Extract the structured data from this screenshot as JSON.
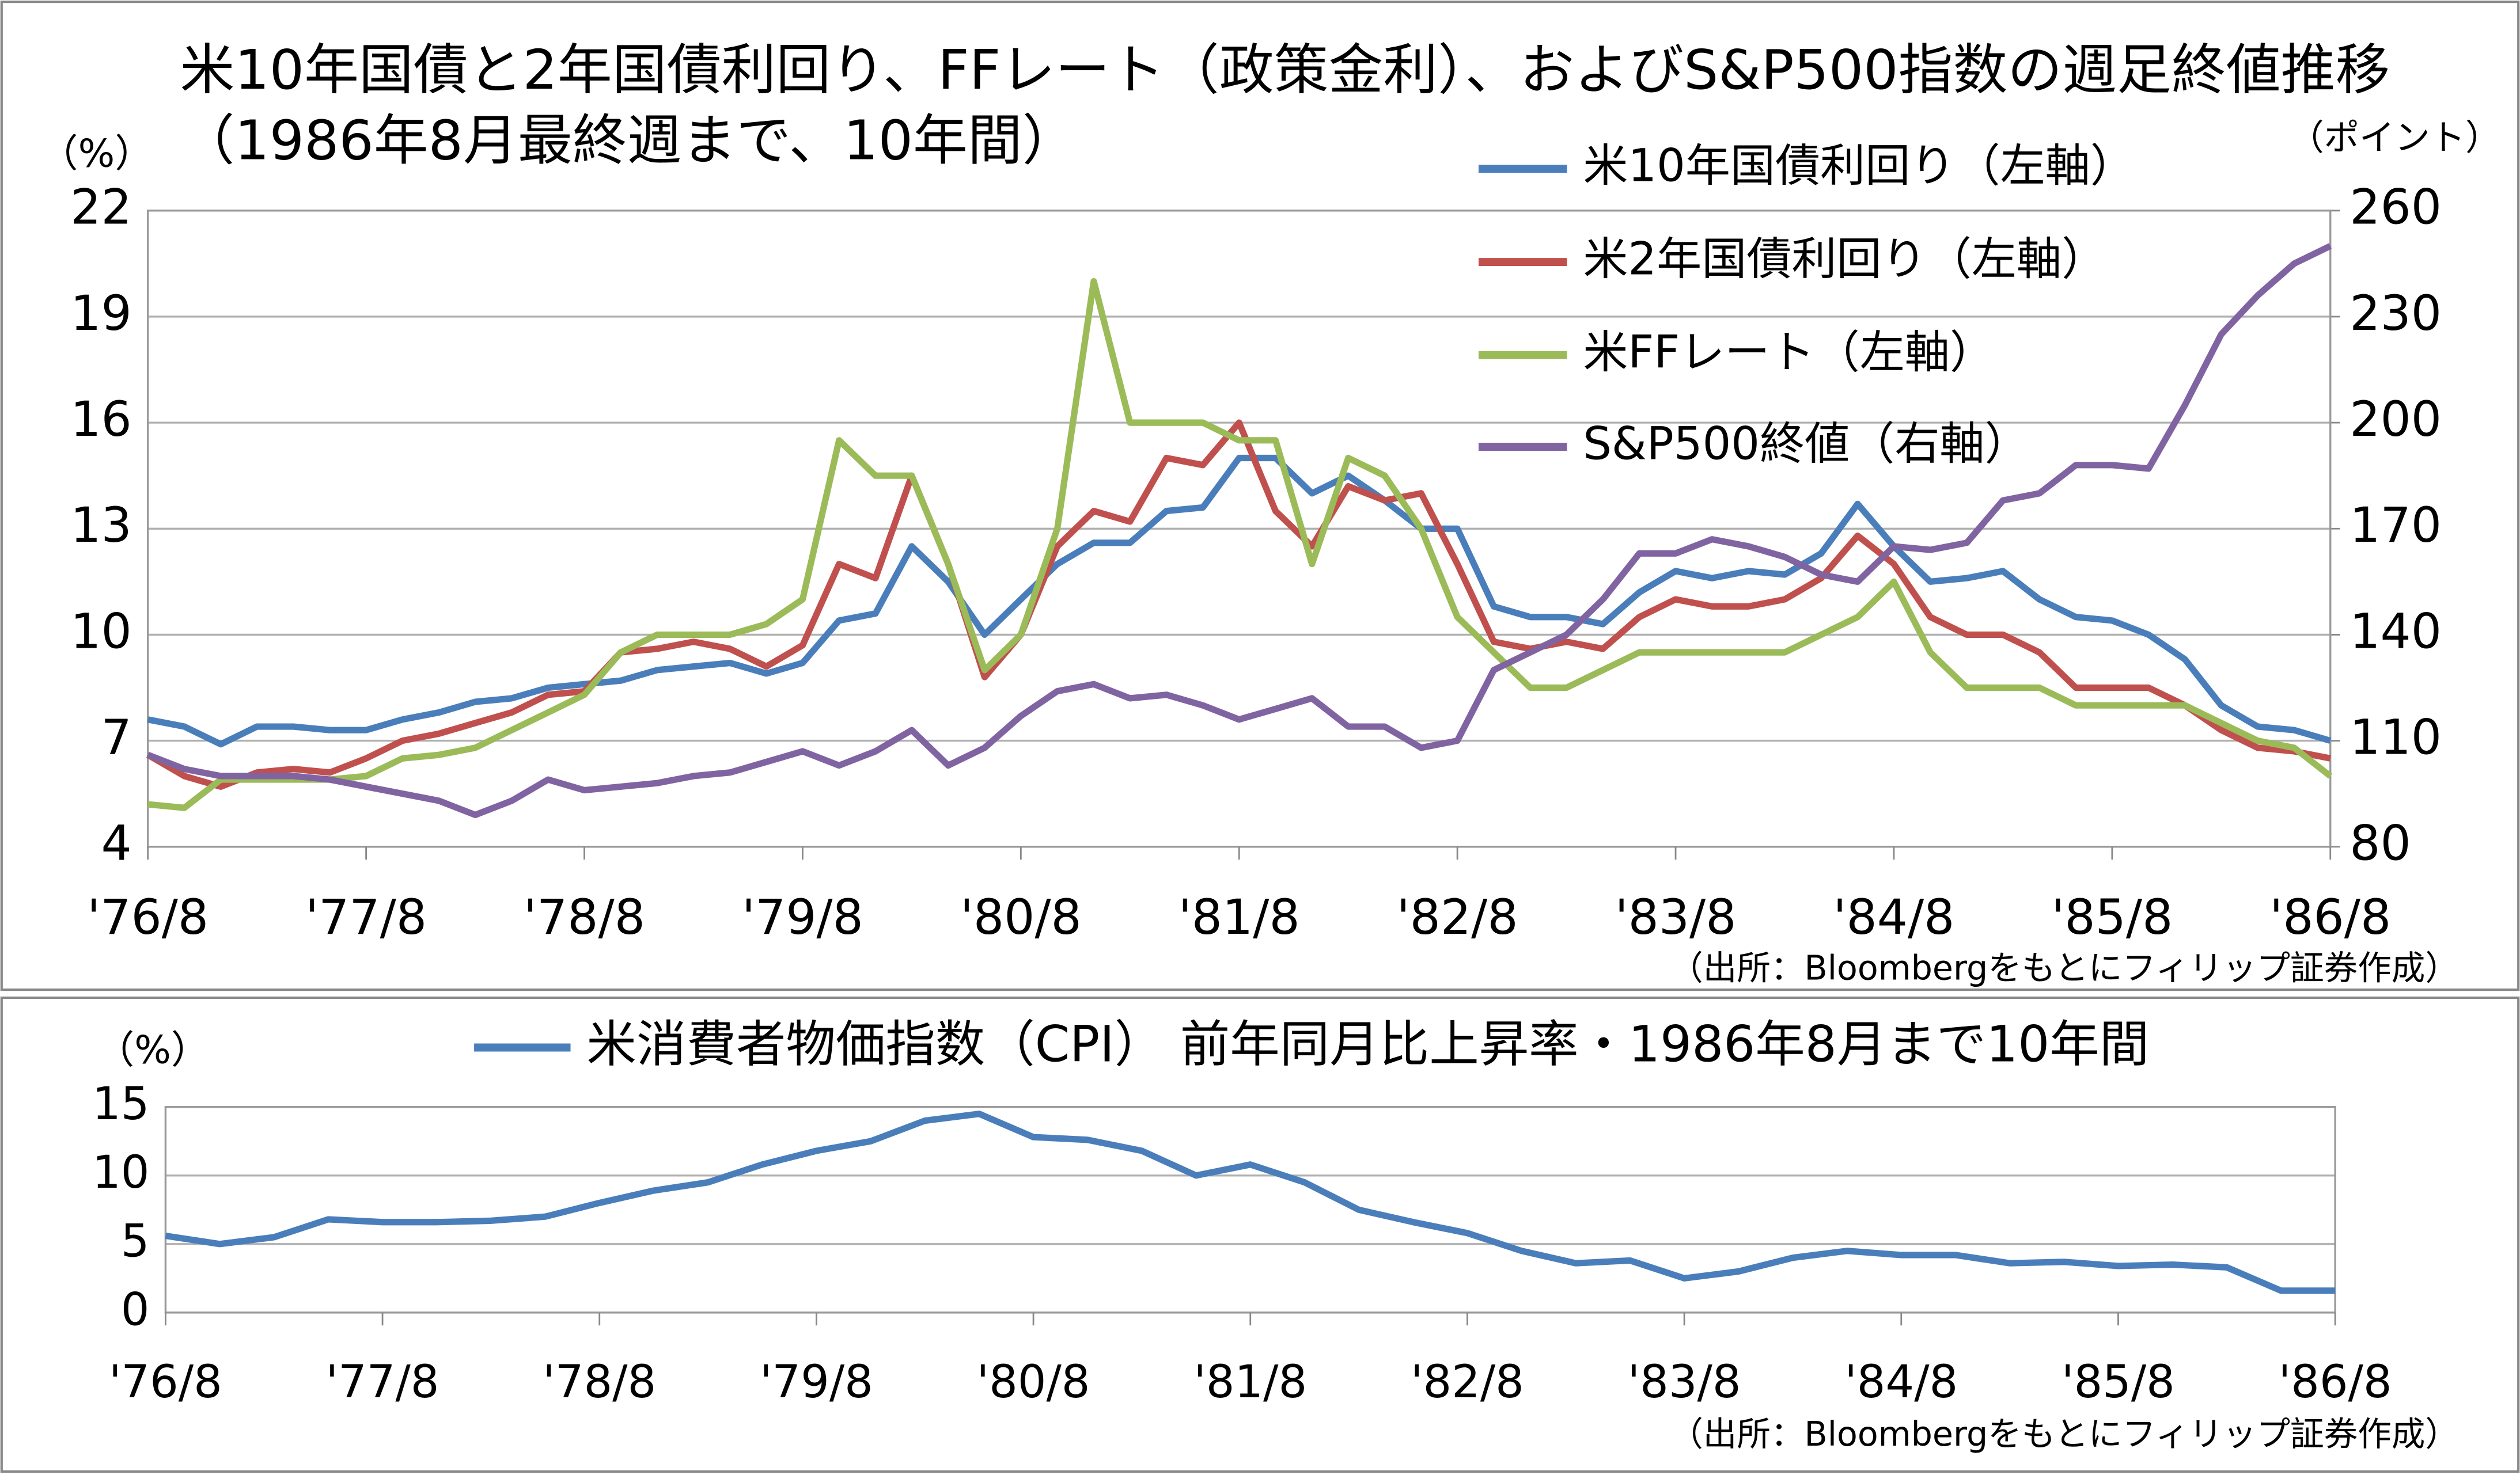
{
  "chart_data": [
    {
      "type": "line",
      "title": "米10年国債と2年国債利回り、FFレート（政策金利）、およびS&P500指数の週足終値推移（1986年8月最終週まで、10年間）",
      "y_unit_label": "（%）",
      "y2_unit_label": "（ポイント）",
      "source": "（出所：Bloombergをもとにフィリップ証券作成）",
      "x": [
        1976.583,
        1976.75,
        1976.917,
        1977.083,
        1977.25,
        1977.417,
        1977.583,
        1977.75,
        1977.917,
        1978.083,
        1978.25,
        1978.417,
        1978.583,
        1978.75,
        1978.917,
        1979.083,
        1979.25,
        1979.417,
        1979.583,
        1979.75,
        1979.917,
        1980.083,
        1980.25,
        1980.417,
        1980.583,
        1980.75,
        1980.917,
        1981.083,
        1981.25,
        1981.417,
        1981.583,
        1981.75,
        1981.917,
        1982.083,
        1982.25,
        1982.417,
        1982.583,
        1982.75,
        1982.917,
        1983.083,
        1983.25,
        1983.417,
        1983.583,
        1983.75,
        1983.917,
        1984.083,
        1984.25,
        1984.417,
        1984.583,
        1984.75,
        1984.917,
        1985.083,
        1985.25,
        1985.417,
        1985.583,
        1985.75,
        1985.917,
        1986.083,
        1986.25,
        1986.417,
        1986.583
      ],
      "xlim": [
        1976.583,
        1986.583
      ],
      "xticks": [
        {
          "value": 1976.583,
          "label": "'76/8"
        },
        {
          "value": 1977.583,
          "label": "'77/8"
        },
        {
          "value": 1978.583,
          "label": "'78/8"
        },
        {
          "value": 1979.583,
          "label": "'79/8"
        },
        {
          "value": 1980.583,
          "label": "'80/8"
        },
        {
          "value": 1981.583,
          "label": "'81/8"
        },
        {
          "value": 1982.583,
          "label": "'82/8"
        },
        {
          "value": 1983.583,
          "label": "'83/8"
        },
        {
          "value": 1984.583,
          "label": "'84/8"
        },
        {
          "value": 1985.583,
          "label": "'85/8"
        },
        {
          "value": 1986.583,
          "label": "'86/8"
        }
      ],
      "ylim": [
        4,
        22
      ],
      "yticks": [
        4,
        7,
        10,
        13,
        16,
        19,
        22
      ],
      "y2lim": [
        80,
        260
      ],
      "y2ticks": [
        80,
        110,
        140,
        170,
        200,
        230,
        260
      ],
      "grid": true,
      "series": [
        {
          "name": "米10年国債利回り（左軸）",
          "color": "#4a7ebb",
          "values": [
            7.6,
            7.4,
            6.9,
            7.4,
            7.4,
            7.3,
            7.3,
            7.6,
            7.8,
            8.1,
            8.2,
            8.5,
            8.6,
            8.7,
            9.0,
            9.1,
            9.2,
            8.9,
            9.2,
            10.4,
            10.6,
            12.5,
            11.5,
            10.0,
            11.0,
            12.0,
            12.6,
            12.6,
            13.5,
            13.6,
            15.0,
            15.0,
            14.0,
            14.5,
            13.8,
            13.0,
            13.0,
            10.8,
            10.5,
            10.5,
            10.3,
            11.2,
            11.8,
            11.6,
            11.8,
            11.7,
            12.3,
            13.7,
            12.5,
            11.5,
            11.6,
            11.8,
            11.0,
            10.5,
            10.4,
            10.0,
            9.3,
            8.0,
            7.4,
            7.3,
            7.0
          ]
        },
        {
          "name": "米2年国債利回り（左軸）",
          "color": "#c0504d",
          "values": [
            6.6,
            6.0,
            5.7,
            6.1,
            6.2,
            6.1,
            6.5,
            7.0,
            7.2,
            7.5,
            7.8,
            8.3,
            8.4,
            9.5,
            9.6,
            9.8,
            9.6,
            9.1,
            9.7,
            12.0,
            11.6,
            14.5,
            12.0,
            8.8,
            10.0,
            12.5,
            13.5,
            13.2,
            15.0,
            14.8,
            16.0,
            13.5,
            12.5,
            14.2,
            13.8,
            14.0,
            12.0,
            9.8,
            9.6,
            9.8,
            9.6,
            10.5,
            11.0,
            10.8,
            10.8,
            11.0,
            11.6,
            12.8,
            12.0,
            10.5,
            10.0,
            10.0,
            9.5,
            8.5,
            8.5,
            8.5,
            8.0,
            7.3,
            6.8,
            6.7,
            6.5
          ]
        },
        {
          "name": "米FFレート（左軸）",
          "color": "#9bbb59",
          "values": [
            5.2,
            5.1,
            5.9,
            5.9,
            5.9,
            5.9,
            6.0,
            6.5,
            6.6,
            6.8,
            7.3,
            7.8,
            8.3,
            9.5,
            10.0,
            10.0,
            10.0,
            10.3,
            11.0,
            15.5,
            14.5,
            14.5,
            12.0,
            9.0,
            10.0,
            13.0,
            20.0,
            16.0,
            16.0,
            16.0,
            15.5,
            15.5,
            12.0,
            15.0,
            14.5,
            13.0,
            10.5,
            9.5,
            8.5,
            8.5,
            9.0,
            9.5,
            9.5,
            9.5,
            9.5,
            9.5,
            10.0,
            10.5,
            11.5,
            9.5,
            8.5,
            8.5,
            8.5,
            8.0,
            8.0,
            8.0,
            8.0,
            7.5,
            7.0,
            6.8,
            6.0
          ]
        },
        {
          "name": "S&P500終値（右軸）",
          "color": "#8064a2",
          "axis": "y2",
          "values": [
            106,
            102,
            100,
            100,
            100,
            99,
            97,
            95,
            93,
            89,
            93,
            99,
            96,
            97,
            98,
            100,
            101,
            104,
            107,
            103,
            107,
            113,
            103,
            108,
            117,
            124,
            126,
            122,
            123,
            120,
            116,
            119,
            122,
            114,
            114,
            108,
            110,
            130,
            135,
            140,
            150,
            163,
            163,
            167,
            165,
            162,
            157,
            155,
            165,
            164,
            166,
            178,
            180,
            188,
            188,
            187,
            205,
            225,
            236,
            245,
            250
          ]
        }
      ]
    },
    {
      "type": "line",
      "y_unit_label": "（%）",
      "source": "（出所：Bloombergをもとにフィリップ証券作成）",
      "x": [
        1976.583,
        1976.833,
        1977.083,
        1977.333,
        1977.583,
        1977.833,
        1978.083,
        1978.333,
        1978.583,
        1978.833,
        1979.083,
        1979.333,
        1979.583,
        1979.833,
        1980.083,
        1980.333,
        1980.583,
        1980.833,
        1981.083,
        1981.333,
        1981.583,
        1981.833,
        1982.083,
        1982.333,
        1982.583,
        1982.833,
        1983.083,
        1983.333,
        1983.583,
        1983.833,
        1984.083,
        1984.333,
        1984.583,
        1984.833,
        1985.083,
        1985.333,
        1985.583,
        1985.833,
        1986.083,
        1986.333,
        1986.583
      ],
      "xlim": [
        1976.583,
        1986.583
      ],
      "xticks": [
        {
          "value": 1976.583,
          "label": "'76/8"
        },
        {
          "value": 1977.583,
          "label": "'77/8"
        },
        {
          "value": 1978.583,
          "label": "'78/8"
        },
        {
          "value": 1979.583,
          "label": "'79/8"
        },
        {
          "value": 1980.583,
          "label": "'80/8"
        },
        {
          "value": 1981.583,
          "label": "'81/8"
        },
        {
          "value": 1982.583,
          "label": "'82/8"
        },
        {
          "value": 1983.583,
          "label": "'83/8"
        },
        {
          "value": 1984.583,
          "label": "'84/8"
        },
        {
          "value": 1985.583,
          "label": "'85/8"
        },
        {
          "value": 1986.583,
          "label": "'86/8"
        }
      ],
      "ylim": [
        0,
        15
      ],
      "yticks": [
        0,
        5,
        10,
        15
      ],
      "grid": true,
      "series": [
        {
          "name": "米消費者物価指数（CPI） 前年同月比上昇率・1986年8月まで10年間",
          "color": "#4a7ebb",
          "values": [
            5.6,
            5.0,
            5.5,
            6.8,
            6.6,
            6.6,
            6.7,
            7.0,
            8.0,
            8.9,
            9.5,
            10.8,
            11.8,
            12.5,
            14.0,
            14.5,
            12.8,
            12.6,
            11.8,
            10.0,
            10.8,
            9.5,
            7.5,
            6.6,
            5.8,
            4.5,
            3.6,
            3.8,
            2.5,
            3.0,
            4.0,
            4.5,
            4.2,
            4.2,
            3.6,
            3.7,
            3.4,
            3.5,
            3.3,
            1.6,
            1.6
          ]
        }
      ]
    }
  ]
}
